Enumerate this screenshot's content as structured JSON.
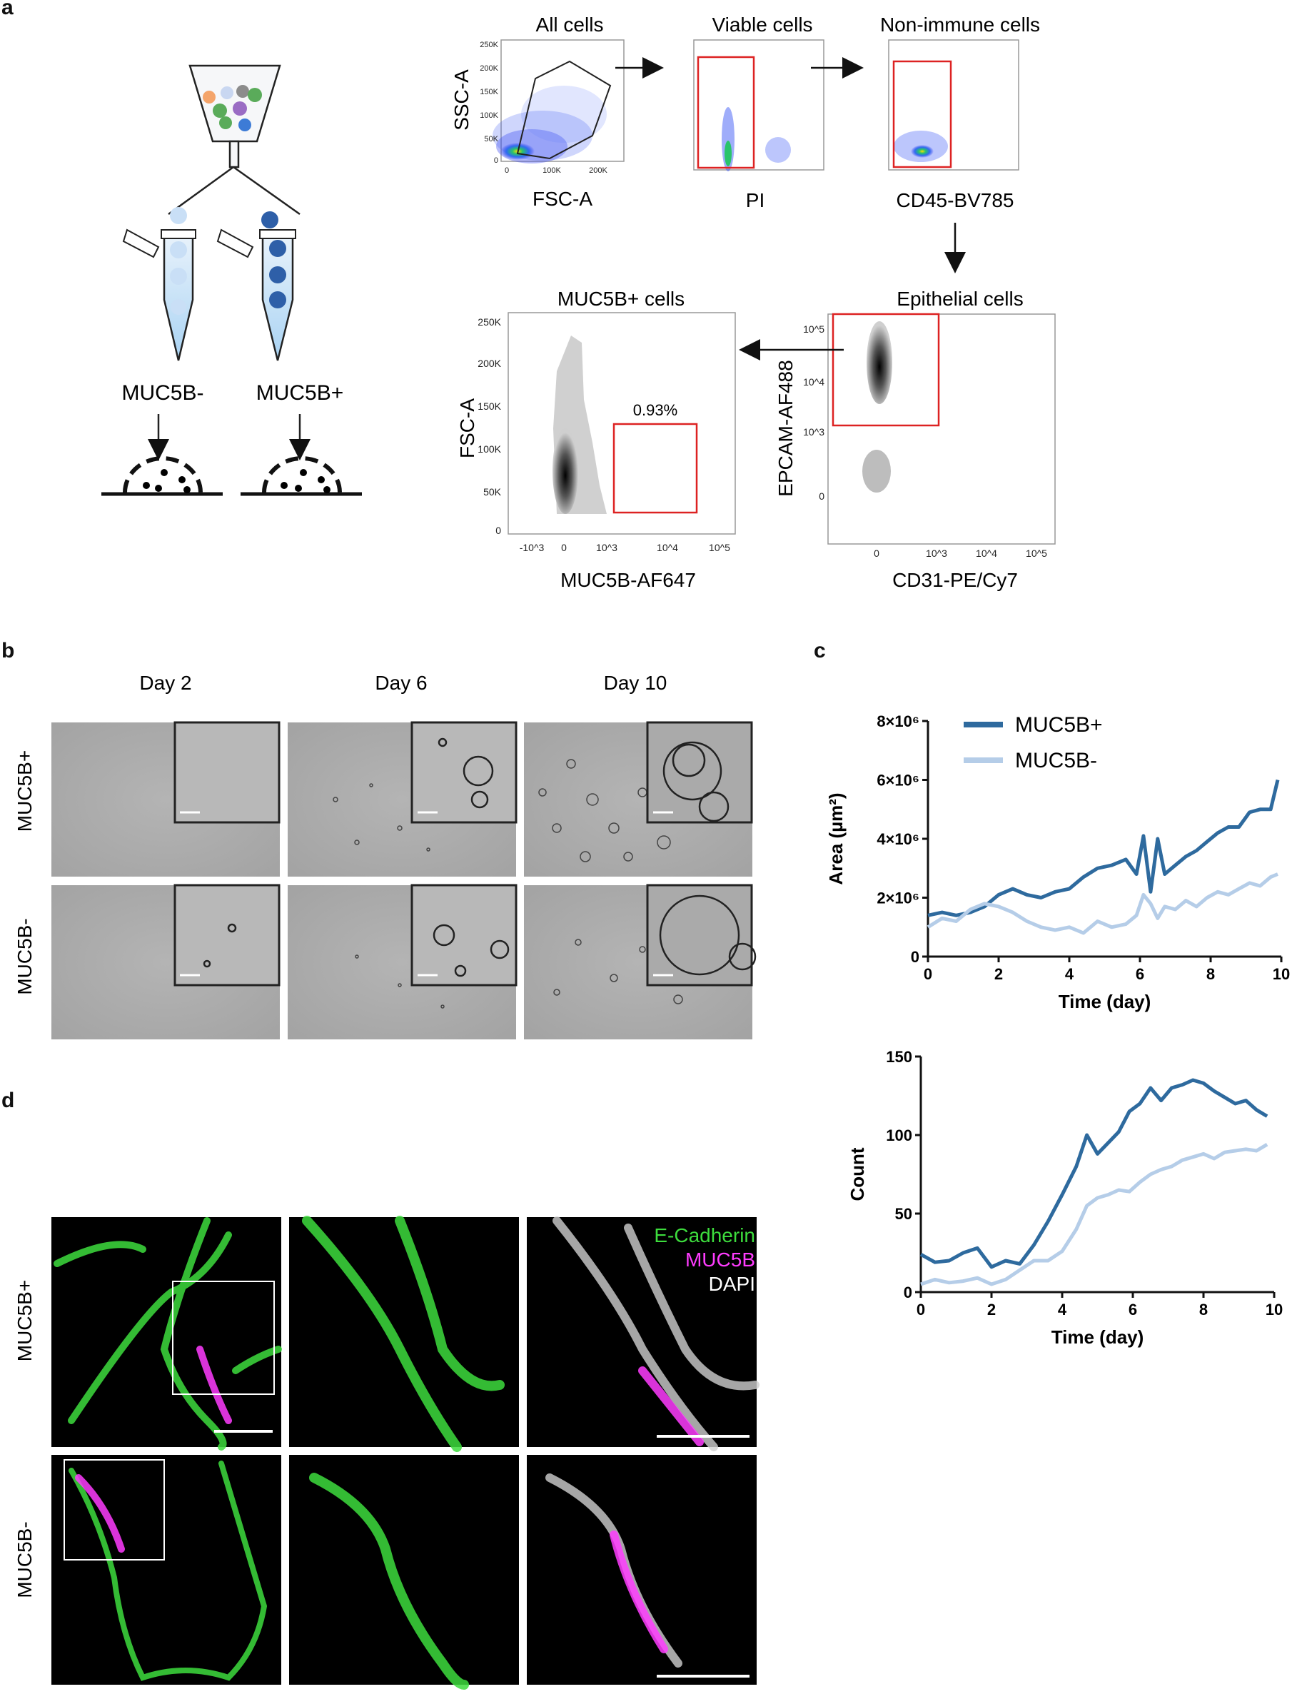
{
  "panel_labels": [
    "a",
    "b",
    "c",
    "d"
  ],
  "panel_a": {
    "groups": [
      "MUC5B-",
      "MUC5B+"
    ],
    "gates": [
      {
        "title": "All cells",
        "xlabel": "FSC-A",
        "ylabel": "SSC-A",
        "yticks": [
          "250K",
          "200K",
          "150K",
          "100K",
          "50K",
          "0"
        ],
        "xticks": [
          "0",
          "100K",
          "200K"
        ]
      },
      {
        "title": "Viable cells",
        "xlabel": "PI"
      },
      {
        "title": "Non-immune cells",
        "xlabel": "CD45-BV785"
      },
      {
        "title": "Epithelial cells",
        "xlabel": "CD31-PE/Cy7",
        "ylabel": "EPCAM-AF488",
        "yticks": [
          "10^5",
          "10^4",
          "10^3",
          "0"
        ],
        "xticks": [
          "0",
          "10^3",
          "10^4",
          "10^5"
        ]
      },
      {
        "title": "MUC5B+ cells",
        "xlabel": "MUC5B-AF647",
        "ylabel": "FSC-A",
        "yticks": [
          "250K",
          "200K",
          "150K",
          "100K",
          "50K",
          "0"
        ],
        "xticks": [
          "-10^3",
          "0",
          "10^3",
          "10^4",
          "10^5"
        ],
        "gate_percent": "0.93%"
      }
    ]
  },
  "panel_b": {
    "columns": [
      "Day 2",
      "Day 6",
      "Day 10"
    ],
    "rows": [
      "MUC5B+",
      "MUC5B-"
    ]
  },
  "panel_c": {
    "legend": [
      "MUC5B+",
      "MUC5B-"
    ],
    "colors": {
      "muc5b_pos": "#2e6a9e",
      "muc5b_neg": "#b5cde8"
    }
  },
  "panel_d": {
    "rows": [
      "MUC5B+",
      "MUC5B-"
    ],
    "channels": [
      "E-Cadherin",
      "MUC5B",
      "DAPI"
    ],
    "channel_colors": {
      "ecad": "#3ddc3d",
      "muc5b": "#ff3cff",
      "dapi": "#ffffff"
    }
  },
  "chart_data": [
    {
      "type": "line",
      "ylabel_main": "Area",
      "ylabel_unit": "(µm²)",
      "xlabel": "Time (day)",
      "ylim": [
        0,
        8000000
      ],
      "xlim": [
        0,
        10
      ],
      "xticks": [
        "0",
        "2",
        "4",
        "6",
        "8",
        "10"
      ],
      "yticks": [
        "0",
        "2×10⁶",
        "4×10⁶",
        "6×10⁶",
        "8×10⁶"
      ],
      "legend_position": "top-left",
      "series": [
        {
          "name": "MUC5B+",
          "color": "#2e6a9e",
          "x": [
            0,
            0.4,
            0.8,
            1.2,
            1.6,
            2.0,
            2.4,
            2.8,
            3.2,
            3.6,
            4.0,
            4.4,
            4.8,
            5.2,
            5.6,
            5.9,
            6.1,
            6.3,
            6.5,
            6.7,
            7.0,
            7.3,
            7.6,
            7.9,
            8.2,
            8.5,
            8.8,
            9.1,
            9.4,
            9.7,
            9.9
          ],
          "y": [
            1400000,
            1500000,
            1400000,
            1500000,
            1700000,
            2100000,
            2300000,
            2100000,
            2000000,
            2200000,
            2300000,
            2700000,
            3000000,
            3100000,
            3300000,
            2800000,
            4100000,
            2200000,
            4000000,
            2800000,
            3100000,
            3400000,
            3600000,
            3900000,
            4200000,
            4400000,
            4400000,
            4900000,
            5000000,
            5000000,
            6000000
          ]
        },
        {
          "name": "MUC5B-",
          "color": "#b5cde8",
          "x": [
            0,
            0.4,
            0.8,
            1.2,
            1.6,
            2.0,
            2.4,
            2.8,
            3.2,
            3.6,
            4.0,
            4.4,
            4.8,
            5.2,
            5.6,
            5.9,
            6.1,
            6.3,
            6.5,
            6.7,
            7.0,
            7.3,
            7.6,
            7.9,
            8.2,
            8.5,
            8.8,
            9.1,
            9.4,
            9.7,
            9.9
          ],
          "y": [
            1000000,
            1300000,
            1200000,
            1600000,
            1800000,
            1700000,
            1500000,
            1200000,
            1000000,
            900000,
            1000000,
            800000,
            1200000,
            1000000,
            1100000,
            1400000,
            2100000,
            1800000,
            1300000,
            1700000,
            1600000,
            1900000,
            1700000,
            2000000,
            2200000,
            2100000,
            2300000,
            2500000,
            2400000,
            2700000,
            2800000
          ]
        }
      ]
    },
    {
      "type": "line",
      "ylabel": "Count",
      "xlabel": "Time (day)",
      "ylim": [
        0,
        150
      ],
      "xlim": [
        0,
        10
      ],
      "xticks": [
        "0",
        "2",
        "4",
        "6",
        "8",
        "10"
      ],
      "yticks": [
        "0",
        "50",
        "100",
        "150"
      ],
      "series": [
        {
          "name": "MUC5B+",
          "color": "#2e6a9e",
          "x": [
            0,
            0.4,
            0.8,
            1.2,
            1.6,
            2.0,
            2.4,
            2.8,
            3.2,
            3.6,
            4.0,
            4.4,
            4.7,
            5.0,
            5.3,
            5.6,
            5.9,
            6.2,
            6.5,
            6.8,
            7.1,
            7.4,
            7.7,
            8.0,
            8.3,
            8.6,
            8.9,
            9.2,
            9.5,
            9.8
          ],
          "y": [
            24,
            19,
            20,
            25,
            28,
            16,
            20,
            18,
            30,
            45,
            62,
            80,
            100,
            88,
            95,
            102,
            115,
            120,
            130,
            122,
            130,
            132,
            135,
            133,
            128,
            124,
            120,
            122,
            116,
            112
          ]
        },
        {
          "name": "MUC5B-",
          "color": "#b5cde8",
          "x": [
            0,
            0.4,
            0.8,
            1.2,
            1.6,
            2.0,
            2.4,
            2.8,
            3.2,
            3.6,
            4.0,
            4.4,
            4.7,
            5.0,
            5.3,
            5.6,
            5.9,
            6.2,
            6.5,
            6.8,
            7.1,
            7.4,
            7.7,
            8.0,
            8.3,
            8.6,
            8.9,
            9.2,
            9.5,
            9.8
          ],
          "y": [
            5,
            8,
            6,
            7,
            9,
            5,
            8,
            14,
            20,
            20,
            26,
            40,
            55,
            60,
            62,
            65,
            64,
            70,
            75,
            78,
            80,
            84,
            86,
            88,
            85,
            89,
            90,
            91,
            90,
            94
          ]
        }
      ]
    }
  ]
}
